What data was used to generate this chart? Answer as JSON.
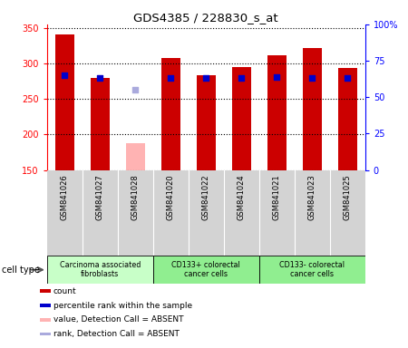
{
  "title": "GDS4385 / 228830_s_at",
  "samples": [
    "GSM841026",
    "GSM841027",
    "GSM841028",
    "GSM841020",
    "GSM841022",
    "GSM841024",
    "GSM841021",
    "GSM841023",
    "GSM841025"
  ],
  "count_values": [
    341,
    280,
    null,
    308,
    283,
    295,
    311,
    322,
    294
  ],
  "absent_value": [
    null,
    null,
    188,
    null,
    null,
    null,
    null,
    null,
    null
  ],
  "percentile_values": [
    284,
    280,
    null,
    280,
    279,
    280,
    281,
    280,
    279
  ],
  "absent_rank_value": [
    null,
    null,
    263,
    null,
    null,
    null,
    null,
    null,
    null
  ],
  "ylim_left": [
    150,
    355
  ],
  "ylim_right": [
    0,
    100
  ],
  "yticks_left": [
    150,
    200,
    250,
    300,
    350
  ],
  "yticks_right": [
    0,
    25,
    50,
    75,
    100
  ],
  "ytick_labels_right": [
    "0",
    "25",
    "50",
    "75",
    "100%"
  ],
  "cell_groups": [
    {
      "label": "Carcinoma associated\nfibroblasts",
      "start": 0,
      "end": 3,
      "color": "#c8ffc8"
    },
    {
      "label": "CD133+ colorectal\ncancer cells",
      "start": 3,
      "end": 6,
      "color": "#90ee90"
    },
    {
      "label": "CD133- colorectal\ncancer cells",
      "start": 6,
      "end": 9,
      "color": "#90ee90"
    }
  ],
  "bar_width": 0.55,
  "count_color": "#cc0000",
  "absent_value_color": "#ffb3b3",
  "percentile_color": "#0000cc",
  "absent_rank_color": "#aaaadd",
  "bg_color": "#d3d3d3",
  "legend_items": [
    {
      "color": "#cc0000",
      "label": "count"
    },
    {
      "color": "#0000cc",
      "label": "percentile rank within the sample"
    },
    {
      "color": "#ffb3b3",
      "label": "value, Detection Call = ABSENT"
    },
    {
      "color": "#aaaadd",
      "label": "rank, Detection Call = ABSENT"
    }
  ],
  "cell_type_label": "cell type"
}
